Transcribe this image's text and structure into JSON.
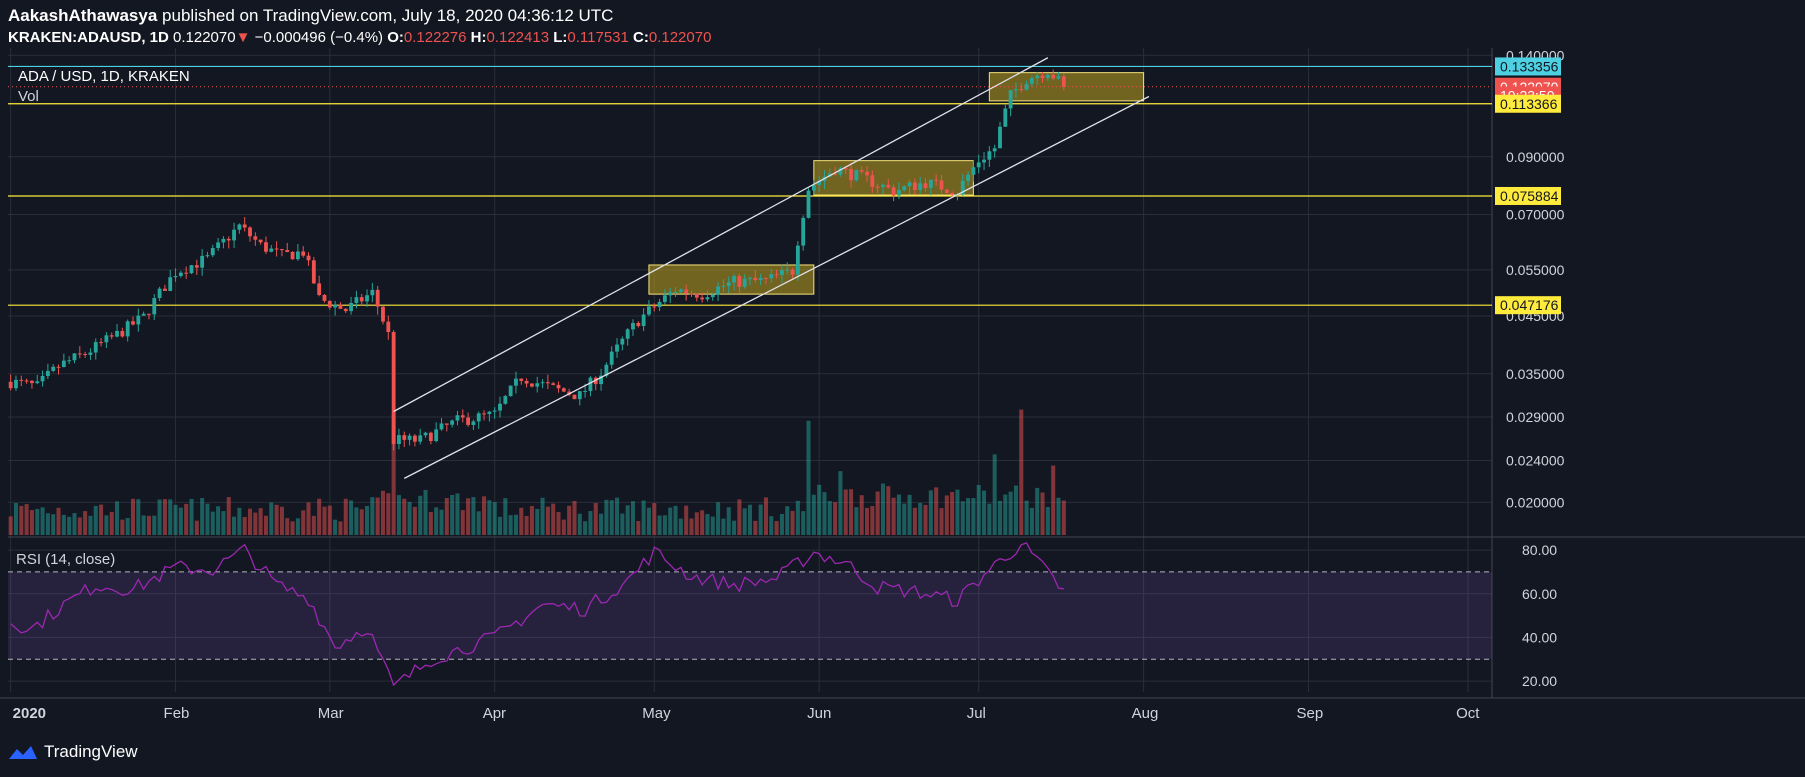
{
  "header": {
    "author": "AakashAthawasya",
    "published_text": "published on TradingView.com, July 18, 2020 04:36:12 UTC",
    "symbol": "KRAKEN:ADAUSD, 1D",
    "last": "0.122070",
    "change": "−0.000496 (−0.4%)",
    "o_label": "O:",
    "o": "0.122276",
    "h_label": "H:",
    "h": "0.122413",
    "l_label": "L:",
    "l": "0.117531",
    "c_label": "C:",
    "c": "0.122070"
  },
  "footer": {
    "brand": "TradingView"
  },
  "colors": {
    "background": "#131722",
    "up": "#26a69a",
    "down": "#ef5350",
    "support_line": "#ffeb3b",
    "resistance_line": "#4dd0e1",
    "rsi": "#9c27b0",
    "zone_fill": "#bfa21f"
  },
  "chart_data": [
    {
      "type": "candlestick",
      "title": "ADA / USD, 1D, KRAKEN",
      "sub_label": "Vol",
      "y_scale": "log",
      "ylim": [
        0.0172,
        0.1445
      ],
      "y_ticks": [
        "0.140000",
        "0.090000",
        "0.070000",
        "0.055000",
        "0.045000",
        "0.035000",
        "0.029000",
        "0.024000",
        "0.020000"
      ],
      "x_ticks": [
        "2020",
        "Feb",
        "Mar",
        "Apr",
        "May",
        "Jun",
        "Jul",
        "Aug",
        "Sep",
        "Oct"
      ],
      "x_range": [
        "2020-01-01",
        "2020-10-06"
      ],
      "price_labels": [
        {
          "value": 0.133356,
          "text": "0.133356",
          "color": "#4dd0e1"
        },
        {
          "value": 0.12207,
          "text": "0.122070",
          "color": "#ef5350"
        },
        {
          "value": 0.1175,
          "text": "19:23:50",
          "color": "#ef5350"
        },
        {
          "value": 0.113366,
          "text": "0.113366",
          "color": "#ffeb3b"
        },
        {
          "value": 0.075884,
          "text": "0.075884",
          "color": "#ffeb3b"
        },
        {
          "value": 0.047176,
          "text": "0.047176",
          "color": "#ffeb3b"
        }
      ],
      "horizontal_lines": [
        0.133356,
        0.113366,
        0.075884,
        0.047176
      ],
      "dotted_line": 0.12207,
      "zones": [
        {
          "start": "2020-04-30",
          "end": "2020-05-31",
          "low": 0.0495,
          "high": 0.0562
        },
        {
          "start": "2020-05-31",
          "end": "2020-06-30",
          "low": 0.0762,
          "high": 0.0885
        },
        {
          "start": "2020-07-03",
          "end": "2020-08-01",
          "low": 0.1148,
          "high": 0.1298
        }
      ],
      "channel": {
        "upper": [
          [
            "2020-03-13",
            0.0297
          ],
          [
            "2020-07-14",
            0.1385
          ]
        ],
        "lower": [
          [
            "2020-03-15",
            0.0222
          ],
          [
            "2020-08-02",
            0.117
          ]
        ]
      },
      "anchors": [
        [
          "2020-01-01",
          0.0338
        ],
        [
          "2020-01-06",
          0.0331
        ],
        [
          "2020-01-10",
          0.0362
        ],
        [
          "2020-01-15",
          0.0382
        ],
        [
          "2020-01-21",
          0.0415
        ],
        [
          "2020-01-26",
          0.0448
        ],
        [
          "2020-02-01",
          0.0545
        ],
        [
          "2020-02-07",
          0.0578
        ],
        [
          "2020-02-13",
          0.0665
        ],
        [
          "2020-02-17",
          0.0612
        ],
        [
          "2020-02-21",
          0.0585
        ],
        [
          "2020-02-25",
          0.0595
        ],
        [
          "2020-02-28",
          0.0485
        ],
        [
          "2020-03-04",
          0.0462
        ],
        [
          "2020-03-09",
          0.0498
        ],
        [
          "2020-03-12",
          0.0415
        ],
        [
          "2020-03-13",
          0.0262
        ],
        [
          "2020-03-18",
          0.0262
        ],
        [
          "2020-03-25",
          0.0285
        ],
        [
          "2020-04-01",
          0.0293
        ],
        [
          "2020-04-06",
          0.0345
        ],
        [
          "2020-04-12",
          0.0328
        ],
        [
          "2020-04-17",
          0.0318
        ],
        [
          "2020-04-21",
          0.0352
        ],
        [
          "2020-04-28",
          0.0442
        ],
        [
          "2020-05-05",
          0.0505
        ],
        [
          "2020-05-10",
          0.0495
        ],
        [
          "2020-05-16",
          0.0522
        ],
        [
          "2020-05-22",
          0.0525
        ],
        [
          "2020-05-27",
          0.0548
        ],
        [
          "2020-05-30",
          0.0785
        ],
        [
          "2020-06-04",
          0.0855
        ],
        [
          "2020-06-10",
          0.0815
        ],
        [
          "2020-06-15",
          0.0775
        ],
        [
          "2020-06-21",
          0.0805
        ],
        [
          "2020-06-27",
          0.0775
        ],
        [
          "2020-07-01",
          0.0885
        ],
        [
          "2020-07-04",
          0.0935
        ],
        [
          "2020-07-07",
          0.1175
        ],
        [
          "2020-07-10",
          0.1265
        ],
        [
          "2020-07-14",
          0.1312
        ],
        [
          "2020-07-17",
          0.12207
        ]
      ],
      "volume_spikes": [
        [
          "2020-03-13",
          1.0
        ],
        [
          "2020-05-30",
          0.9
        ],
        [
          "2020-07-09",
          1.0
        ],
        [
          "2020-07-04",
          0.6
        ],
        [
          "2020-06-05",
          0.45
        ],
        [
          "2020-07-15",
          0.5
        ]
      ]
    },
    {
      "type": "line",
      "title": "RSI (14, close)",
      "ylim": [
        15,
        86
      ],
      "y_ticks": [
        80,
        60,
        40,
        20
      ],
      "bands": [
        30,
        70
      ],
      "anchors": [
        [
          "2020-01-01",
          47
        ],
        [
          "2020-01-05",
          44
        ],
        [
          "2020-01-11",
          55
        ],
        [
          "2020-01-17",
          64
        ],
        [
          "2020-01-24",
          62
        ],
        [
          "2020-02-01",
          72
        ],
        [
          "2020-02-08",
          71
        ],
        [
          "2020-02-14",
          80
        ],
        [
          "2020-02-20",
          64
        ],
        [
          "2020-02-26",
          58
        ],
        [
          "2020-03-02",
          36
        ],
        [
          "2020-03-08",
          45
        ],
        [
          "2020-03-13",
          17
        ],
        [
          "2020-03-20",
          30
        ],
        [
          "2020-04-01",
          40
        ],
        [
          "2020-04-10",
          55
        ],
        [
          "2020-04-18",
          53
        ],
        [
          "2020-04-26",
          66
        ],
        [
          "2020-05-01",
          79
        ],
        [
          "2020-05-08",
          68
        ],
        [
          "2020-05-16",
          64
        ],
        [
          "2020-05-24",
          67
        ],
        [
          "2020-05-31",
          79
        ],
        [
          "2020-06-06",
          74
        ],
        [
          "2020-06-12",
          63
        ],
        [
          "2020-06-19",
          61
        ],
        [
          "2020-06-27",
          57
        ],
        [
          "2020-07-03",
          71
        ],
        [
          "2020-07-09",
          83
        ],
        [
          "2020-07-13",
          72
        ],
        [
          "2020-07-17",
          61
        ]
      ]
    }
  ]
}
